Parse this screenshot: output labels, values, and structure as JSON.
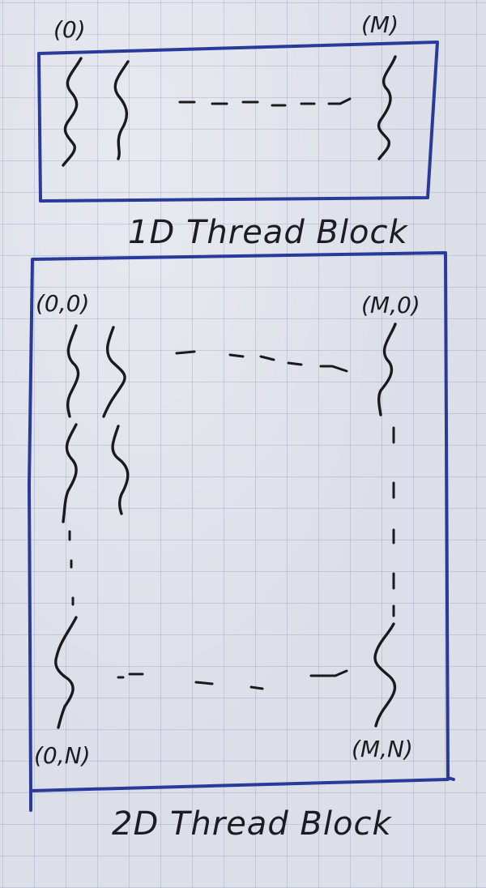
{
  "block_1d": {
    "title": "1D Thread Block",
    "label_first": "(0)",
    "label_last": "(M)"
  },
  "block_2d": {
    "title": "2D Thread Block",
    "label_top_left": "(0,0)",
    "label_top_right": "(M,0)",
    "label_bottom_left": "(0,N)",
    "label_bottom_right": "(M,N)"
  },
  "colors": {
    "border_ink": "#2a3a9a",
    "thread_ink": "#1a1a1e",
    "paper": "#dcdee8"
  }
}
